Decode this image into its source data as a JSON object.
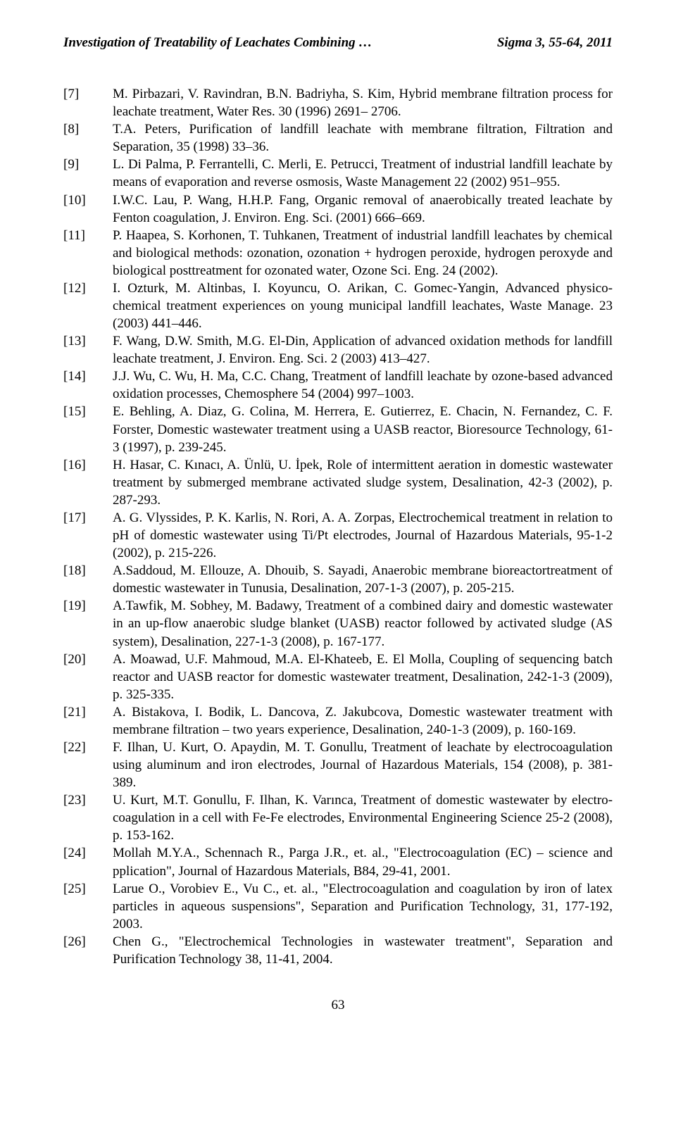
{
  "header": {
    "left": "Investigation of Treatability of Leachates Combining …",
    "right": "Sigma 3, 55-64, 2011"
  },
  "references": [
    {
      "num": "[7]",
      "text": "M. Pirbazari, V. Ravindran, B.N. Badriyha, S. Kim, Hybrid membrane filtration process for leachate treatment, Water Res. 30 (1996) 2691– 2706."
    },
    {
      "num": "[8]",
      "text": "T.A. Peters, Purification of landfill leachate with membrane filtration, Filtration and Separation, 35 (1998) 33–36."
    },
    {
      "num": "[9]",
      "text": "L. Di Palma, P. Ferrantelli, C. Merli, E. Petrucci, Treatment of industrial landfill leachate by means of evaporation and reverse osmosis, Waste Management 22 (2002) 951–955."
    },
    {
      "num": "[10]",
      "text": "I.W.C. Lau, P. Wang, H.H.P. Fang, Organic removal of anaerobically treated leachate by Fenton coagulation, J. Environ. Eng. Sci. (2001) 666–669."
    },
    {
      "num": "[11]",
      "text": "P. Haapea, S. Korhonen, T. Tuhkanen, Treatment of industrial landfill leachates by chemical and biological methods: ozonation, ozonation + hydrogen peroxide, hydrogen peroxyde and biological posttreatment for ozonated water, Ozone Sci. Eng. 24 (2002)."
    },
    {
      "num": "[12]",
      "text": "I. Ozturk, M. Altinbas, I. Koyuncu, O. Arikan, C. Gomec-Yangin, Advanced physico-chemical treatment experiences on young municipal landfill leachates, Waste Manage. 23 (2003) 441–446."
    },
    {
      "num": "[13]",
      "text": "F. Wang, D.W. Smith, M.G. El-Din, Application of advanced oxidation methods for landfill leachate treatment, J. Environ. Eng. Sci. 2 (2003) 413–427."
    },
    {
      "num": "[14]",
      "text": "J.J. Wu, C. Wu, H. Ma, C.C. Chang, Treatment of landfill leachate by ozone-based advanced oxidation processes, Chemosphere 54 (2004) 997–1003."
    },
    {
      "num": "[15]",
      "text": "E. Behling, A. Diaz, G. Colina, M. Herrera, E. Gutierrez, E. Chacin, N. Fernandez, C. F. Forster,  Domestic wastewater treatment using a UASB reactor, Bioresource Technology, 61-3 (1997), p. 239-245."
    },
    {
      "num": "[16]",
      "text": "H. Hasar, C. Kınacı, A. Ünlü, U. İpek, Role of intermittent aeration in domestic wastewater treatment by submerged membrane activated sludge system, Desalination, 42-3 (2002), p. 287-293."
    },
    {
      "num": "[17]",
      "text": "A. G. Vlyssides, P. K. Karlis, N. Rori, A. A. Zorpas, Electrochemical treatment in relation to pH of domestic wastewater using Ti/Pt electrodes, Journal of Hazardous Materials, 95-1-2 (2002), p. 215-226."
    },
    {
      "num": "[18]",
      "text": "A.Saddoud, M. Ellouze, A. Dhouib, S. Sayadi, Anaerobic membrane bioreactortreatment of domestic wastewater in Tunusia, Desalination, 207-1-3 (2007), p. 205-215."
    },
    {
      "num": "[19]",
      "text": "A.Tawfik, M. Sobhey, M. Badawy,  Treatment of a combined dairy and domestic wastewater in an up-flow anaerobic sludge blanket (UASB) reactor followed by activated sludge (AS system), Desalination, 227-1-3 (2008), p. 167-177."
    },
    {
      "num": "[20]",
      "text": "A. Moawad, U.F. Mahmoud, M.A. El-Khateeb, E. El Molla, Coupling of sequencing batch reactor and UASB reactor for domestic wastewater treatment, Desalination,  242-1-3 (2009), p. 325-335."
    },
    {
      "num": "[21]",
      "text": "A. Bistakova, I. Bodik, L. Dancova, Z. Jakubcova, Domestic wastewater treatment with membrane filtration – two years experience, Desalination, 240-1-3 (2009), p. 160-169."
    },
    {
      "num": "[22]",
      "text": "F. Ilhan, U. Kurt, O. Apaydin, M. T. Gonullu, Treatment of leachate by electrocoagulation using aluminum and iron electrodes, Journal of Hazardous Materials, 154 (2008), p. 381-389."
    },
    {
      "num": "[23]",
      "text": "U. Kurt, M.T. Gonullu, F. Ilhan, K. Varınca, Treatment of domestic wastewater by electro-coagulation in a cell with Fe-Fe electrodes, Environmental Engineering Science 25-2 (2008), p. 153-162."
    },
    {
      "num": "[24]",
      "text": "Mollah M.Y.A., Schennach R., Parga J.R., et. al., \"Electrocoagulation (EC) – science and pplication\", Journal of Hazardous Materials, B84, 29-41, 2001."
    },
    {
      "num": "[25]",
      "text": "Larue O., Vorobiev E., Vu C., et. al., \"Electrocoagulation and coagulation by iron of latex particles in aqueous suspensions\", Separation and Purification Technology, 31, 177-192, 2003."
    },
    {
      "num": "[26]",
      "text": "Chen G., \"Electrochemical Technologies in wastewater treatment\", Separation and Purification Technology 38, 11-41, 2004."
    }
  ],
  "page_number": "63"
}
